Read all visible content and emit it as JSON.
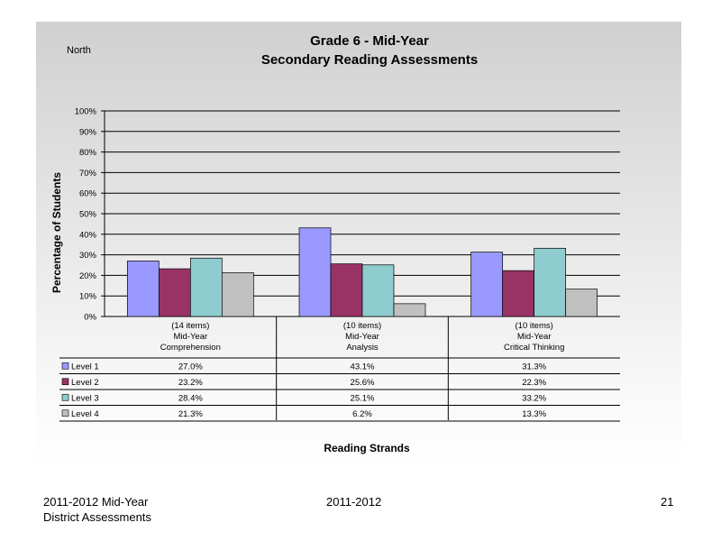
{
  "header": {
    "region": "North",
    "title": "Grade 6 - Mid-Year",
    "subtitle": "Secondary Reading Assessments"
  },
  "chart_data": {
    "type": "bar",
    "title": "Grade 6 - Mid-Year",
    "subtitle": "Secondary Reading Assessments",
    "ylabel": "Percentage of Students",
    "xlabel": "Reading Strands",
    "ylim": [
      0,
      100
    ],
    "yticks": [
      "0%",
      "10%",
      "20%",
      "30%",
      "40%",
      "50%",
      "60%",
      "70%",
      "80%",
      "90%",
      "100%"
    ],
    "grid": true,
    "categories": [
      {
        "items": "(14 items)",
        "line2": "Mid-Year",
        "line3": "Comprehension"
      },
      {
        "items": "(10 items)",
        "line2": "Mid-Year",
        "line3": "Analysis"
      },
      {
        "items": "(10 items)",
        "line2": "Mid-Year",
        "line3": "Critical Thinking"
      }
    ],
    "series": [
      {
        "name": "Level 1",
        "color": "#9999ff",
        "values": [
          27.0,
          43.1,
          31.3
        ],
        "labels": [
          "27.0%",
          "43.1%",
          "31.3%"
        ]
      },
      {
        "name": "Level 2",
        "color": "#993366",
        "values": [
          23.2,
          25.6,
          22.3
        ],
        "labels": [
          "23.2%",
          "25.6%",
          "22.3%"
        ]
      },
      {
        "name": "Level 3",
        "color": "#8fcccf",
        "values": [
          28.4,
          25.1,
          33.2
        ],
        "labels": [
          "28.4%",
          "25.1%",
          "33.2%"
        ]
      },
      {
        "name": "Level 4",
        "color": "#c0c0c0",
        "values": [
          21.3,
          6.2,
          13.3
        ],
        "labels": [
          "21.3%",
          "6.2%",
          "13.3%"
        ]
      }
    ]
  },
  "footer": {
    "left_line1": "2011-2012  Mid-Year",
    "left_line2": "District Assessments",
    "center": "2011-2012",
    "page": "21"
  }
}
